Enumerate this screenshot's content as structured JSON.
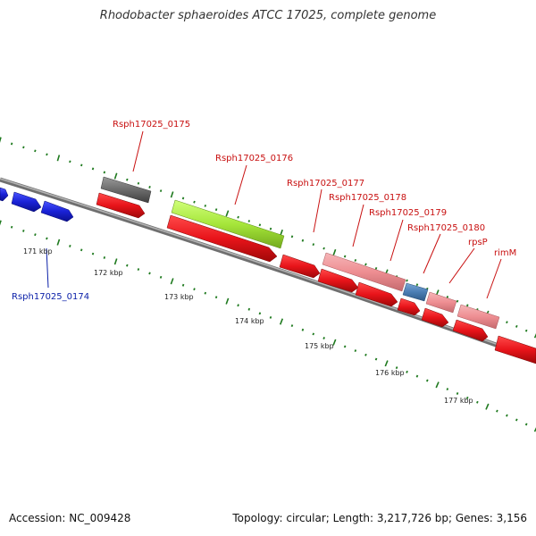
{
  "title": "Rhodobacter sphaeroides ATCC 17025, complete genome",
  "footer": {
    "accession": "Accession: NC_009428",
    "summary": "Topology: circular; Length: 3,217,726 bp; Genes: 3,156"
  },
  "ticks": [
    "171 kbp",
    "172 kbp",
    "173 kbp",
    "174 kbp",
    "175 kbp",
    "176 kbp",
    "177 kbp"
  ],
  "gene_labels": [
    {
      "text": "Rsph17025_0174",
      "color": "#0a1fa8"
    },
    {
      "text": "Rsph17025_0175",
      "color": "#c81010"
    },
    {
      "text": "Rsph17025_0176",
      "color": "#c81010"
    },
    {
      "text": "Rsph17025_0177",
      "color": "#c81010"
    },
    {
      "text": "Rsph17025_0178",
      "color": "#c81010"
    },
    {
      "text": "Rsph17025_0179",
      "color": "#c81010"
    },
    {
      "text": "Rsph17025_0180",
      "color": "#c81010"
    },
    {
      "text": "rpsP",
      "color": "#c81010"
    },
    {
      "text": "rimM",
      "color": "#c81010"
    }
  ],
  "colors": {
    "backbone": "#8a8a8a",
    "cds_red": "#e8141a",
    "cds_blue": "#1a22d6",
    "pink": "#ee8e92",
    "gray_feature": "#6c6c6c",
    "green_feature": "#a6e63a",
    "steel_blue": "#4a7db3",
    "dot_green": "#1f7a1f"
  }
}
